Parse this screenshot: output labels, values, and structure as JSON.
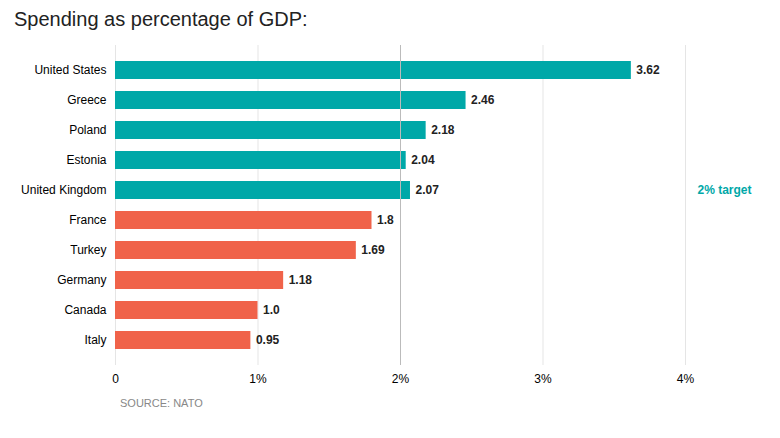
{
  "chart_data": {
    "type": "bar",
    "orientation": "horizontal",
    "title": "Spending as percentage of GDP:",
    "caption": "SOURCE: NATO",
    "categories": [
      "Italy",
      "Canada",
      "Germany",
      "Turkey",
      "France",
      "United Kingdom",
      "Estonia",
      "Poland",
      "Greece",
      "United States"
    ],
    "values": [
      0.95,
      1.0,
      1.18,
      1.69,
      1.8,
      2.07,
      2.04,
      2.18,
      2.46,
      3.62
    ],
    "value_labels": [
      "0.95",
      "1.0",
      "1.18",
      "1.69",
      "1.8",
      "2.07",
      "2.04",
      "2.18",
      "2.46",
      "3.62"
    ],
    "colors": [
      "#f0634a",
      "#f0634a",
      "#f0634a",
      "#f0634a",
      "#f0634a",
      "#00a8a8",
      "#00a8a8",
      "#00a8a8",
      "#00a8a8",
      "#00a8a8"
    ],
    "data_labels": true,
    "xlim": [
      0,
      4.0
    ],
    "xticks": [
      0,
      {
        "value": 1,
        "label": "1%"
      },
      {
        "value": 2,
        "label": "2%"
      },
      {
        "value": 3,
        "label": "3%"
      },
      {
        "value": 4,
        "label": "4%"
      }
    ],
    "grid": true,
    "reference_line": {
      "x": 2.0,
      "label": "2% target",
      "label_color": "#00a8a8",
      "y": "United Kingdom"
    }
  }
}
